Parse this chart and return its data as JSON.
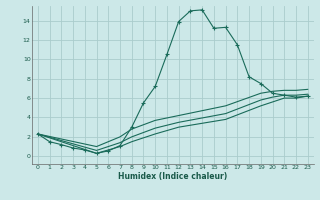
{
  "bg_color": "#cce8e8",
  "grid_color": "#aacccc",
  "line_color": "#1a6b5a",
  "xlabel": "Humidex (Indice chaleur)",
  "xlim": [
    -0.5,
    23.5
  ],
  "ylim": [
    -0.8,
    15.5
  ],
  "xticks": [
    0,
    1,
    2,
    3,
    4,
    5,
    6,
    7,
    8,
    9,
    10,
    11,
    12,
    13,
    14,
    15,
    16,
    17,
    18,
    19,
    20,
    21,
    22,
    23
  ],
  "yticks": [
    0,
    2,
    4,
    6,
    8,
    10,
    12,
    14
  ],
  "main_x": [
    0,
    1,
    2,
    3,
    4,
    5,
    6,
    7,
    8,
    9,
    10,
    11,
    12,
    13,
    14,
    15,
    16,
    17,
    18,
    19,
    20,
    21,
    22,
    23
  ],
  "main_y": [
    2.3,
    1.5,
    1.2,
    0.85,
    0.65,
    0.3,
    0.55,
    1.1,
    3.0,
    5.5,
    7.2,
    10.5,
    13.9,
    15.0,
    15.1,
    13.2,
    13.3,
    11.5,
    8.2,
    7.5,
    6.5,
    6.3,
    6.1,
    6.2
  ],
  "diag1_x": [
    0,
    5,
    7,
    8,
    10,
    12,
    16,
    19,
    20,
    21,
    22,
    23
  ],
  "diag1_y": [
    2.3,
    0.3,
    1.0,
    1.5,
    2.3,
    3.0,
    3.8,
    5.2,
    5.6,
    6.0,
    6.0,
    6.2
  ],
  "diag2_x": [
    0,
    5,
    7,
    8,
    10,
    12,
    16,
    19,
    20,
    21,
    22,
    23
  ],
  "diag2_y": [
    2.3,
    0.6,
    1.4,
    2.0,
    2.9,
    3.5,
    4.4,
    5.8,
    6.1,
    6.3,
    6.3,
    6.4
  ],
  "diag3_x": [
    0,
    5,
    7,
    8,
    10,
    12,
    16,
    19,
    20,
    21,
    22,
    23
  ],
  "diag3_y": [
    2.3,
    1.0,
    2.0,
    2.8,
    3.7,
    4.2,
    5.2,
    6.5,
    6.7,
    6.8,
    6.8,
    6.9
  ]
}
